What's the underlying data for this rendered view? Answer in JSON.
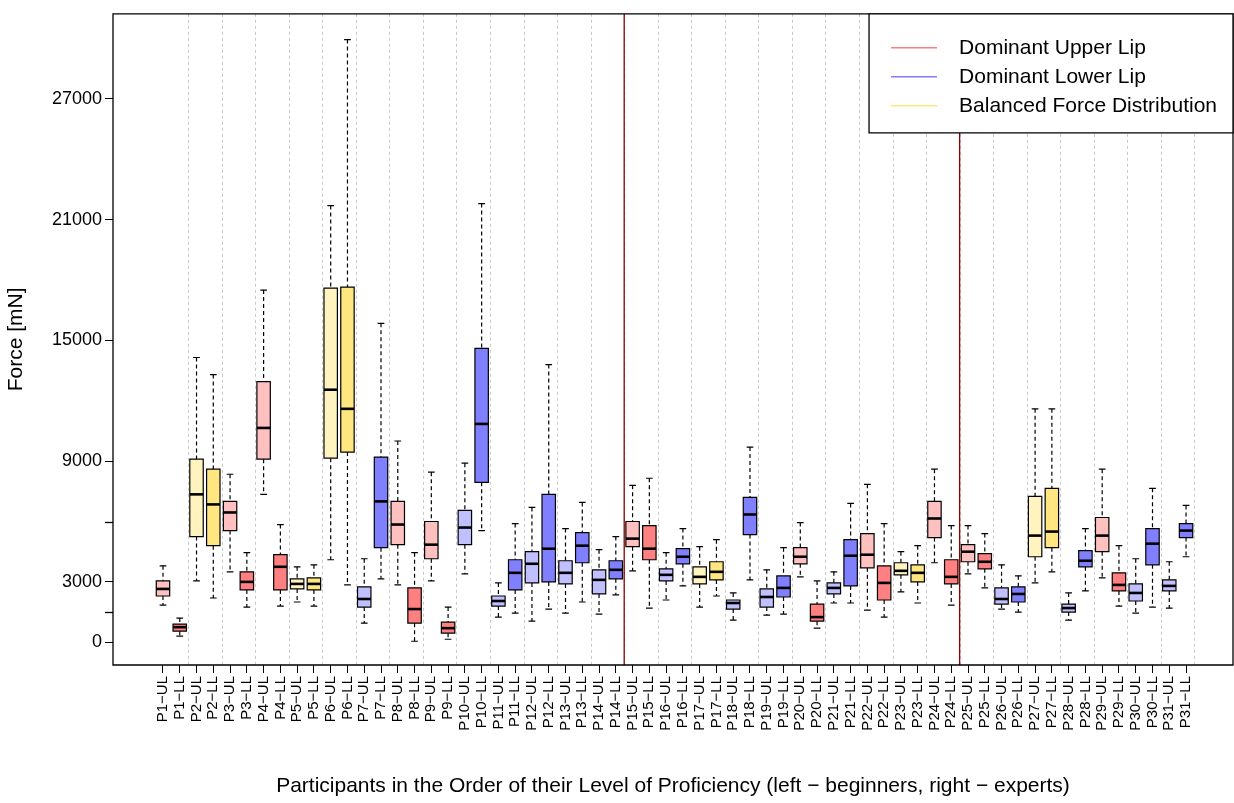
{
  "chart_data": {
    "type": "box",
    "xlabel": "Participants in the Order of their Level of Proficiency (left − beginners, right − experts)",
    "ylabel": "Force [mN]",
    "categories": [
      "P1−UL",
      "P1−LL",
      "P2−UL",
      "P2−LL",
      "P3−UL",
      "P3−LL",
      "P4−UL",
      "P4−LL",
      "P5−UL",
      "P5−LL",
      "P6−UL",
      "P6−LL",
      "P7−UL",
      "P7−LL",
      "P8−UL",
      "P8−LL",
      "P9−UL",
      "P9−LL",
      "P10−UL",
      "P10−LL",
      "P11−UL",
      "P11−LL",
      "P12−UL",
      "P12−LL",
      "P13−UL",
      "P13−LL",
      "P14−UL",
      "P14−LL",
      "P15−UL",
      "P15−LL",
      "P16−UL",
      "P16−LL",
      "P17−UL",
      "P17−LL",
      "P18−UL",
      "P18−LL",
      "P19−UL",
      "P19−LL",
      "P20−UL",
      "P20−LL",
      "P21−UL",
      "P21−LL",
      "P22−UL",
      "P22−LL",
      "P23−UL",
      "P23−LL",
      "P24−UL",
      "P24−LL",
      "P25−UL",
      "P25−LL",
      "P26−UL",
      "P26−LL",
      "P27−UL",
      "P27−LL",
      "P28−UL",
      "P28−LL",
      "P29−UL",
      "P29−LL",
      "P30−UL",
      "P30−LL",
      "P31−UL",
      "P31−LL"
    ],
    "series": [
      {
        "name": "Dominant Upper Lip",
        "color": "#ff7f7f",
        "colors": [
          "#ffc0c0",
          "#ff8080",
          null,
          null,
          "#ffc0c0",
          "#ff8080",
          "#ffc0c0",
          "#ff8080",
          null,
          null,
          null,
          null,
          null,
          null,
          "#ffc0c0",
          "#ff8080",
          "#ffc0c0",
          "#ff8080",
          null,
          null,
          null,
          null,
          null,
          null,
          null,
          null,
          null,
          null,
          "#ffc0c0",
          "#ff8080",
          null,
          null,
          null,
          null,
          null,
          null,
          null,
          null,
          "#ffc0c0",
          "#ff8080",
          null,
          null,
          "#ffc0c0",
          "#ff8080",
          null,
          null,
          "#ffc0c0",
          "#ff8080",
          "#ffc0c0",
          "#ff8080",
          null,
          null,
          null,
          null,
          null,
          null,
          "#ffc0c0",
          "#ff8080",
          null,
          null,
          null,
          null
        ],
        "boxes": [
          {
            "low": 1850,
            "q1": 2300,
            "median": 2650,
            "q3": 3050,
            "high": 3800
          },
          {
            "low": 300,
            "q1": 550,
            "median": 750,
            "q3": 900,
            "high": 1200
          },
          null,
          null,
          {
            "low": 3500,
            "q1": 5550,
            "median": 6450,
            "q3": 7000,
            "high": 8350
          },
          {
            "low": 1750,
            "q1": 2600,
            "median": 3000,
            "q3": 3500,
            "high": 4450
          },
          {
            "low": 7350,
            "q1": 9100,
            "median": 10650,
            "q3": 12950,
            "high": 17500
          },
          {
            "low": 1800,
            "q1": 2600,
            "median": 3750,
            "q3": 4350,
            "high": 5850
          },
          null,
          null,
          null,
          null,
          null,
          null,
          {
            "low": 2850,
            "q1": 4850,
            "median": 5850,
            "q3": 7000,
            "high": 10000
          },
          {
            "low": 50,
            "q1": 950,
            "median": 1650,
            "q3": 2700,
            "high": 4450
          },
          {
            "low": 3050,
            "q1": 4150,
            "median": 4850,
            "q3": 6000,
            "high": 8450
          },
          {
            "low": 150,
            "q1": 450,
            "median": 700,
            "q3": 1000,
            "high": 1750
          },
          null,
          null,
          null,
          null,
          null,
          null,
          null,
          null,
          null,
          null,
          {
            "low": 3550,
            "q1": 4750,
            "median": 5150,
            "q3": 6000,
            "high": 7800
          },
          {
            "low": 1700,
            "q1": 4100,
            "median": 4650,
            "q3": 5800,
            "high": 8150
          },
          null,
          null,
          null,
          null,
          null,
          null,
          null,
          null,
          {
            "low": 3250,
            "q1": 3900,
            "median": 4250,
            "q3": 4700,
            "high": 5950
          },
          {
            "low": 700,
            "q1": 1050,
            "median": 1250,
            "q3": 1900,
            "high": 3050
          },
          null,
          null,
          {
            "low": 1600,
            "q1": 3700,
            "median": 4350,
            "q3": 5400,
            "high": 7850
          },
          {
            "low": 1250,
            "q1": 2100,
            "median": 2950,
            "q3": 3800,
            "high": 5900
          },
          null,
          null,
          {
            "low": 3950,
            "q1": 5200,
            "median": 6150,
            "q3": 7000,
            "high": 8600
          },
          {
            "low": 1850,
            "q1": 2900,
            "median": 3250,
            "q3": 4100,
            "high": 5800
          },
          {
            "low": 3400,
            "q1": 4000,
            "median": 4500,
            "q3": 4850,
            "high": 5800
          },
          {
            "low": 2700,
            "q1": 3650,
            "median": 4000,
            "q3": 4400,
            "high": 5400
          },
          null,
          null,
          null,
          null,
          null,
          null,
          {
            "low": 3200,
            "q1": 4500,
            "median": 5300,
            "q3": 6200,
            "high": 8600
          },
          {
            "low": 1800,
            "q1": 2550,
            "median": 2850,
            "q3": 3450,
            "high": 4800
          },
          null,
          null,
          null,
          null
        ]
      },
      {
        "name": "Dominant Lower Lip",
        "color": "#7f7fff",
        "colors": [
          null,
          null,
          null,
          null,
          null,
          null,
          null,
          null,
          null,
          null,
          null,
          null,
          "#c0c0ff",
          "#8080ff",
          null,
          null,
          null,
          null,
          "#c0c0ff",
          "#8080ff",
          "#c0c0ff",
          "#8080ff",
          "#c0c0ff",
          "#8080ff",
          "#c0c0ff",
          "#8080ff",
          "#c0c0ff",
          "#8080ff",
          null,
          null,
          "#c0c0ff",
          "#8080ff",
          null,
          null,
          "#c0c0ff",
          "#8080ff",
          "#c0c0ff",
          "#8080ff",
          null,
          null,
          "#c0c0ff",
          "#8080ff",
          null,
          null,
          null,
          null,
          null,
          null,
          null,
          null,
          "#c0c0ff",
          "#8080ff",
          null,
          null,
          "#c0c0ff",
          "#8080ff",
          null,
          null,
          "#c0c0ff",
          "#8080ff",
          "#c0c0ff",
          "#8080ff"
        ],
        "boxes": [
          null,
          null,
          null,
          null,
          null,
          null,
          null,
          null,
          null,
          null,
          null,
          null,
          {
            "low": 950,
            "q1": 1750,
            "median": 2150,
            "q3": 2750,
            "high": 4150
          },
          {
            "low": 3150,
            "q1": 4700,
            "median": 7000,
            "q3": 9200,
            "high": 15850
          },
          null,
          null,
          null,
          null,
          {
            "low": 3400,
            "q1": 4850,
            "median": 5700,
            "q3": 6550,
            "high": 8900
          },
          {
            "low": 5550,
            "q1": 7950,
            "median": 10850,
            "q3": 14600,
            "high": 21800
          },
          {
            "low": 1250,
            "q1": 1800,
            "median": 2050,
            "q3": 2300,
            "high": 2950
          },
          {
            "low": 1450,
            "q1": 2600,
            "median": 3450,
            "q3": 4100,
            "high": 5900
          },
          {
            "low": 1050,
            "q1": 2950,
            "median": 3900,
            "q3": 4500,
            "high": 6700
          },
          {
            "low": 1650,
            "q1": 3000,
            "median": 4650,
            "q3": 7350,
            "high": 13800
          },
          {
            "low": 1450,
            "q1": 2900,
            "median": 3450,
            "q3": 4050,
            "high": 5650
          },
          {
            "low": 2000,
            "q1": 3950,
            "median": 4800,
            "q3": 5450,
            "high": 6950
          },
          {
            "low": 1400,
            "q1": 2400,
            "median": 3100,
            "q3": 3600,
            "high": 4600
          },
          {
            "low": 2350,
            "q1": 3150,
            "median": 3600,
            "q3": 4050,
            "high": 5250
          },
          null,
          null,
          {
            "low": 2100,
            "q1": 3050,
            "median": 3350,
            "q3": 3650,
            "high": 4450
          },
          {
            "low": 2800,
            "q1": 3900,
            "median": 4250,
            "q3": 4650,
            "high": 5650
          },
          null,
          null,
          {
            "low": 1100,
            "q1": 1650,
            "median": 1950,
            "q3": 2100,
            "high": 2450
          },
          {
            "low": 3100,
            "q1": 5350,
            "median": 6350,
            "q3": 7200,
            "high": 9700
          },
          {
            "low": 1350,
            "q1": 1750,
            "median": 2250,
            "q3": 2650,
            "high": 3600
          },
          {
            "low": 1400,
            "q1": 2250,
            "median": 2700,
            "q3": 3300,
            "high": 4700
          },
          null,
          null,
          {
            "low": 1950,
            "q1": 2400,
            "median": 2700,
            "q3": 2950,
            "high": 3500
          },
          {
            "low": 1950,
            "q1": 2800,
            "median": 4300,
            "q3": 5100,
            "high": 6900
          },
          null,
          null,
          null,
          null,
          null,
          null,
          null,
          null,
          {
            "low": 1650,
            "q1": 1900,
            "median": 2150,
            "q3": 2700,
            "high": 3850
          },
          {
            "low": 1500,
            "q1": 2000,
            "median": 2400,
            "q3": 2750,
            "high": 3300
          },
          null,
          null,
          {
            "low": 1100,
            "q1": 1500,
            "median": 1700,
            "q3": 1900,
            "high": 2450
          },
          {
            "low": 2550,
            "q1": 3750,
            "median": 4050,
            "q3": 4550,
            "high": 5650
          },
          null,
          null,
          {
            "low": 1450,
            "q1": 2050,
            "median": 2450,
            "q3": 2900,
            "high": 4150
          },
          {
            "low": 1750,
            "q1": 3850,
            "median": 4900,
            "q3": 5650,
            "high": 7650
          },
          {
            "low": 1700,
            "q1": 2550,
            "median": 2800,
            "q3": 3100,
            "high": 4000
          },
          {
            "low": 4250,
            "q1": 5200,
            "median": 5550,
            "q3": 5900,
            "high": 6800
          }
        ]
      },
      {
        "name": "Balanced Force Distribution",
        "color": "#ffe680",
        "colors": [
          null,
          null,
          "#fff3c0",
          "#ffe680",
          null,
          null,
          null,
          null,
          "#fff3c0",
          "#ffe680",
          "#fff3c0",
          "#ffe680",
          null,
          null,
          null,
          null,
          null,
          null,
          null,
          null,
          null,
          null,
          null,
          null,
          null,
          null,
          null,
          null,
          null,
          null,
          null,
          null,
          "#fff3c0",
          "#ffe680",
          null,
          null,
          null,
          null,
          null,
          null,
          null,
          null,
          null,
          null,
          "#fff3c0",
          "#ffe680",
          null,
          null,
          null,
          null,
          null,
          null,
          "#fff3c0",
          "#ffe680",
          null,
          null,
          null,
          null,
          null,
          null,
          null,
          null
        ],
        "boxes": [
          null,
          null,
          {
            "low": 3050,
            "q1": 5250,
            "median": 7350,
            "q3": 9100,
            "high": 14150
          },
          {
            "low": 2200,
            "q1": 4800,
            "median": 6850,
            "q3": 8600,
            "high": 13300
          },
          null,
          null,
          null,
          null,
          {
            "low": 2000,
            "q1": 2650,
            "median": 2900,
            "q3": 3150,
            "high": 3750
          },
          {
            "low": 1800,
            "q1": 2600,
            "median": 2900,
            "q3": 3200,
            "high": 3850
          },
          {
            "low": 4100,
            "q1": 9150,
            "median": 12550,
            "q3": 17600,
            "high": 21700
          },
          {
            "low": 2850,
            "q1": 9450,
            "median": 11600,
            "q3": 17650,
            "high": 29950
          },
          null,
          null,
          null,
          null,
          null,
          null,
          null,
          null,
          null,
          null,
          null,
          null,
          null,
          null,
          null,
          null,
          null,
          null,
          null,
          null,
          {
            "low": 1750,
            "q1": 2900,
            "median": 3250,
            "q3": 3750,
            "high": 4750
          },
          {
            "low": 2300,
            "q1": 3100,
            "median": 3500,
            "q3": 4000,
            "high": 5100
          },
          null,
          null,
          null,
          null,
          null,
          null,
          null,
          null,
          null,
          null,
          {
            "low": 2500,
            "q1": 3350,
            "median": 3550,
            "q3": 3950,
            "high": 4500
          },
          {
            "low": 1950,
            "q1": 3000,
            "median": 3450,
            "q3": 3850,
            "high": 4800
          },
          null,
          null,
          null,
          null,
          null,
          null,
          {
            "low": 2950,
            "q1": 4250,
            "median": 5300,
            "q3": 7250,
            "high": 11600
          },
          {
            "low": 3500,
            "q1": 4700,
            "median": 5500,
            "q3": 7650,
            "high": 11600
          },
          null,
          null,
          null,
          null,
          null,
          null,
          null,
          null
        ]
      }
    ],
    "ylim": [
      -1130,
      31230
    ],
    "yticks": [
      0,
      3000,
      9000,
      15000,
      21000,
      27000
    ],
    "grid": "x",
    "legend": "top right"
  }
}
